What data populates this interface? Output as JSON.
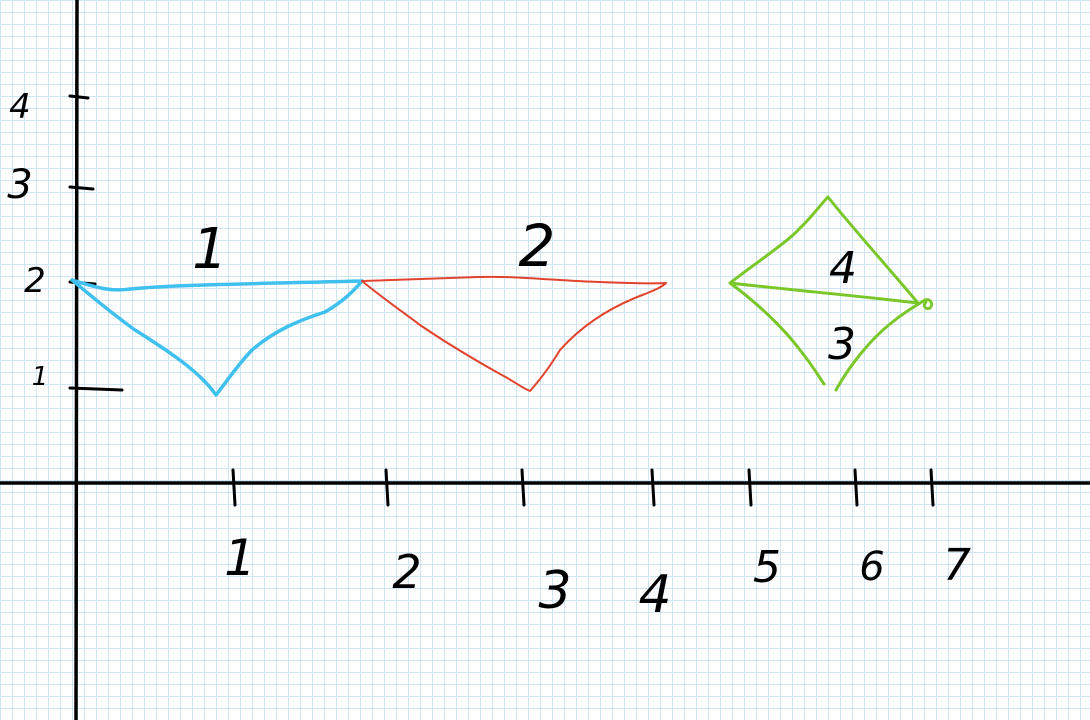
{
  "colors": {
    "grid": "#cfe6f2",
    "axis": "#000000",
    "shape_1": "#3fc0ee",
    "shape_2": "#e2432d",
    "shape_3_4": "#7ac72a"
  },
  "axes": {
    "x_ticks": [
      "1",
      "2",
      "3",
      "4",
      "5",
      "6",
      "7"
    ],
    "y_ticks": [
      "1",
      "2",
      "3",
      "4"
    ]
  },
  "shapes": {
    "shape_1": "1",
    "shape_2": "2",
    "shape_3": "3",
    "shape_4": "4"
  }
}
